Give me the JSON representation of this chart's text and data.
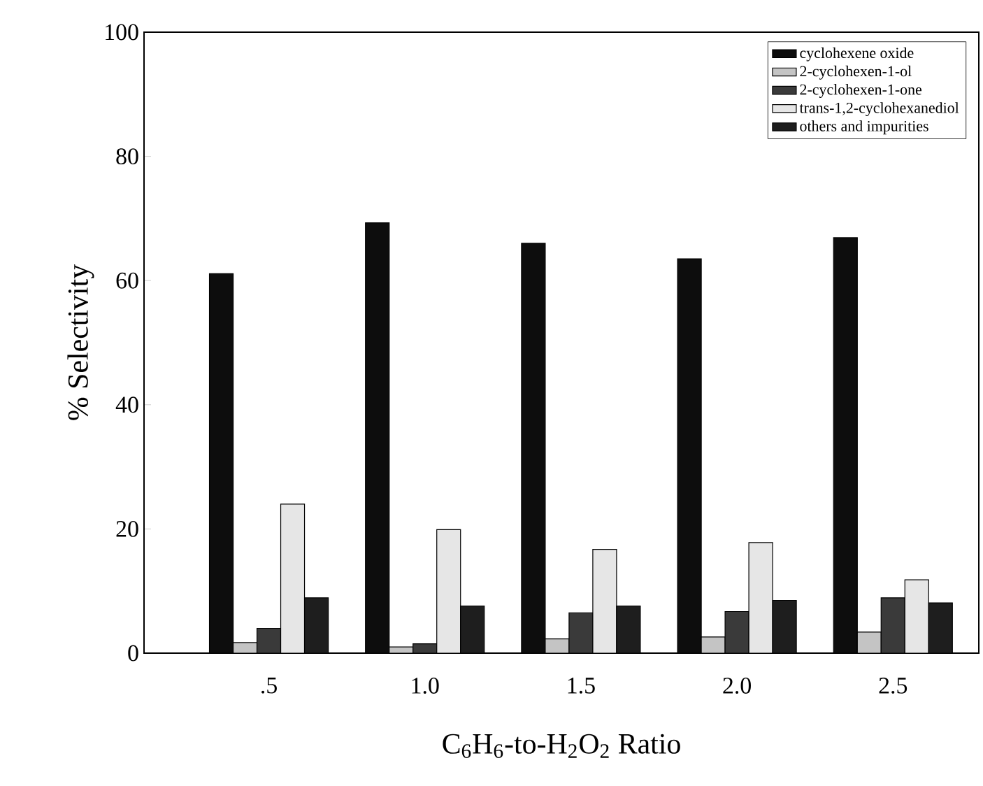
{
  "chart_data": {
    "type": "bar",
    "xlabel": "C$_{6}$H$_{6}$-to-H$_{2}$O$_{2}$ Ratio",
    "ylabel": "% Selectivity",
    "categories": [
      ".5",
      "1.0",
      "1.5",
      "2.0",
      "2.5"
    ],
    "series": [
      {
        "name": "cyclohexene oxide",
        "color": "#0d0d0d",
        "values": [
          61.1,
          69.3,
          66.0,
          63.5,
          66.9
        ]
      },
      {
        "name": "2-cyclohexen-1-ol",
        "color": "#c4c4c4",
        "values": [
          1.7,
          1.0,
          2.3,
          2.6,
          3.4
        ]
      },
      {
        "name": "2-cyclohexen-1-one",
        "color": "#3a3a3a",
        "values": [
          4.0,
          1.5,
          6.5,
          6.7,
          8.9
        ]
      },
      {
        "name": "trans-1,2-cyclohexanediol",
        "color": "#e6e6e6",
        "values": [
          24.0,
          19.9,
          16.7,
          17.8,
          11.8
        ]
      },
      {
        "name": "others and impurities",
        "color": "#1e1e1e",
        "values": [
          8.9,
          7.6,
          7.6,
          8.5,
          8.1
        ]
      }
    ],
    "ylim": [
      0,
      100
    ],
    "yticks": [
      0,
      20,
      40,
      60,
      80,
      100
    ],
    "legend": "top right",
    "grid": false
  }
}
